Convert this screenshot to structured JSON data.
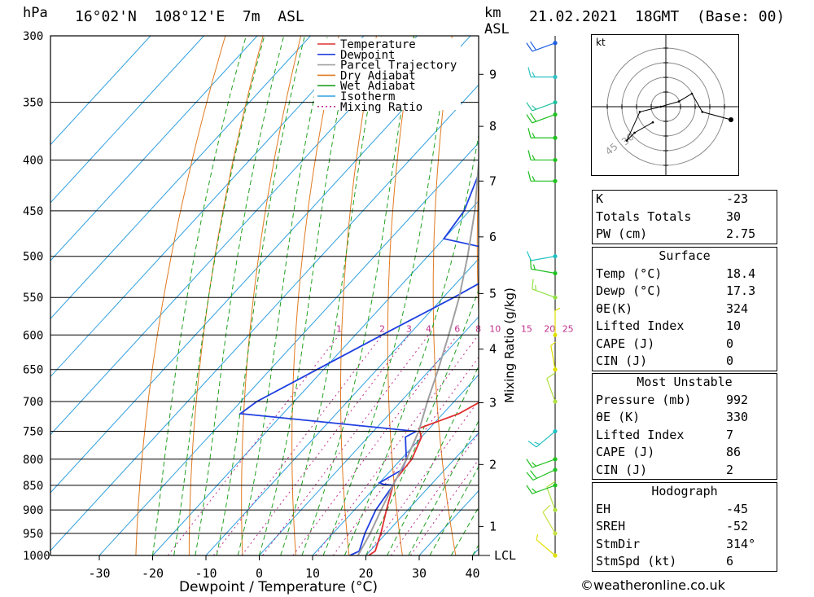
{
  "header": {
    "pressure_unit": "hPa",
    "location": "16°02'N  108°12'E  7m  ASL",
    "height_unit_top": "km",
    "height_unit_bottom": "ASL",
    "datetime": "21.02.2021  18GMT  (Base: 00)"
  },
  "chart_data": {
    "type": "line",
    "title": "",
    "xlabel": "Dewpoint / Temperature (°C)",
    "ylabel": "hPa",
    "right_axis_label": "Mixing Ratio (g/kg)",
    "xlim": [
      -40,
      40
    ],
    "ylim": [
      1000,
      300
    ],
    "x_ticks": [
      -30,
      -20,
      -10,
      0,
      10,
      20,
      30,
      40
    ],
    "pressure_ticks": [
      300,
      350,
      400,
      450,
      500,
      550,
      600,
      650,
      700,
      750,
      800,
      850,
      900,
      950,
      1000
    ],
    "height_ticks_km": [
      {
        "p": 935,
        "label": "1"
      },
      {
        "p": 810,
        "label": "2"
      },
      {
        "p": 702,
        "label": "3"
      },
      {
        "p": 620,
        "label": "4"
      },
      {
        "p": 545,
        "label": "5"
      },
      {
        "p": 478,
        "label": "6"
      },
      {
        "p": 420,
        "label": "7"
      },
      {
        "p": 370,
        "label": "8"
      },
      {
        "p": 328,
        "label": "9"
      }
    ],
    "lcl_label": "LCL",
    "lcl_pressure": 1000,
    "mixing_ratio_labels": [
      "1",
      "2",
      "3",
      "4",
      "6",
      "8",
      "10",
      "15",
      "20",
      "25"
    ],
    "mixing_ratio_values": [
      1,
      2,
      3,
      4,
      6,
      8,
      10,
      15,
      20,
      25
    ],
    "legend": [
      "Temperature",
      "Dewpoint",
      "Parcel Trajectory",
      "Dry Adiabat",
      "Wet Adiabat",
      "Isotherm",
      "Mixing Ratio"
    ],
    "legend_placement": "top-right",
    "colors": {
      "temperature": "#e03030",
      "dewpoint": "#2040e0",
      "parcel": "#a0a0a0",
      "dry_adiabat": "#e07a20",
      "wet_adiabat": "#20a020",
      "isotherm": "#30a0e0",
      "mixing_ratio": "#c0308c"
    },
    "series": [
      {
        "name": "Temperature",
        "points": [
          [
            1000,
            20.5
          ],
          [
            990,
            21
          ],
          [
            950,
            19
          ],
          [
            900,
            16
          ],
          [
            850,
            13
          ],
          [
            840,
            12.5
          ],
          [
            800,
            12
          ],
          [
            760,
            10
          ],
          [
            745,
            8
          ],
          [
            720,
            13
          ],
          [
            700,
            15
          ],
          [
            650,
            10
          ],
          [
            600,
            6
          ],
          [
            550,
            2
          ],
          [
            520,
            -1
          ],
          [
            505,
            -3
          ],
          [
            500,
            -2
          ],
          [
            480,
            -2.5
          ],
          [
            450,
            -6
          ],
          [
            400,
            -13
          ],
          [
            350,
            -23
          ],
          [
            320,
            -29
          ],
          [
            305,
            -31
          ],
          [
            300,
            -32
          ]
        ]
      },
      {
        "name": "Dewpoint",
        "points": [
          [
            1000,
            17
          ],
          [
            990,
            18
          ],
          [
            950,
            16
          ],
          [
            900,
            14
          ],
          [
            850,
            13
          ],
          [
            848,
            11
          ],
          [
            845,
            10
          ],
          [
            820,
            12
          ],
          [
            800,
            11
          ],
          [
            780,
            9
          ],
          [
            760,
            7
          ],
          [
            750,
            8
          ],
          [
            720,
            -28
          ],
          [
            700,
            -27
          ],
          [
            600,
            -15
          ],
          [
            550,
            -8
          ],
          [
            520,
            -4
          ],
          [
            510,
            1
          ],
          [
            500,
            -2
          ],
          [
            480,
            -20
          ],
          [
            450,
            -21
          ],
          [
            400,
            -26
          ],
          [
            355,
            -16
          ],
          [
            320,
            -19
          ],
          [
            310,
            -20
          ],
          [
            300,
            -18
          ]
        ]
      },
      {
        "name": "Parcel Trajectory",
        "points": [
          [
            1000,
            18.5
          ],
          [
            950,
            17
          ],
          [
            900,
            15
          ],
          [
            850,
            13
          ],
          [
            800,
            11
          ],
          [
            750,
            8.5
          ],
          [
            700,
            5
          ],
          [
            650,
            1.5
          ],
          [
            600,
            -2.5
          ],
          [
            550,
            -7
          ],
          [
            500,
            -12.5
          ],
          [
            450,
            -19
          ],
          [
            400,
            -27
          ],
          [
            350,
            -36
          ],
          [
            300,
            -48
          ]
        ]
      }
    ]
  },
  "winds": [
    {
      "p": 1000,
      "dir": 310,
      "kt": 5,
      "color": "#e0e000"
    },
    {
      "p": 950,
      "dir": 330,
      "kt": 8,
      "color": "#c8e040"
    },
    {
      "p": 900,
      "dir": 340,
      "kt": 10,
      "color": "#b0e040"
    },
    {
      "p": 850,
      "dir": 250,
      "kt": 15,
      "color": "#20c020"
    },
    {
      "p": 820,
      "dir": 245,
      "kt": 20,
      "color": "#20c020"
    },
    {
      "p": 800,
      "dir": 250,
      "kt": 15,
      "color": "#20c020"
    },
    {
      "p": 750,
      "dir": 230,
      "kt": 15,
      "color": "#20c0c0"
    },
    {
      "p": 700,
      "dir": 340,
      "kt": 10,
      "color": "#b0e040"
    },
    {
      "p": 650,
      "dir": 350,
      "kt": 5,
      "color": "#e0e000"
    },
    {
      "p": 600,
      "dir": 0,
      "kt": 3,
      "color": "#e0e000"
    },
    {
      "p": 550,
      "dir": 290,
      "kt": 15,
      "color": "#90e040"
    },
    {
      "p": 520,
      "dir": 280,
      "kt": 15,
      "color": "#20c020"
    },
    {
      "p": 500,
      "dir": 260,
      "kt": 10,
      "color": "#20c0c0"
    },
    {
      "p": 420,
      "dir": 270,
      "kt": 15,
      "color": "#20c020"
    },
    {
      "p": 400,
      "dir": 270,
      "kt": 15,
      "color": "#20c020"
    },
    {
      "p": 380,
      "dir": 270,
      "kt": 15,
      "color": "#20c020"
    },
    {
      "p": 360,
      "dir": 250,
      "kt": 20,
      "color": "#20c020"
    },
    {
      "p": 350,
      "dir": 250,
      "kt": 15,
      "color": "#20c0a0"
    },
    {
      "p": 330,
      "dir": 270,
      "kt": 15,
      "color": "#30c0c0"
    },
    {
      "p": 305,
      "dir": 250,
      "kt": 20,
      "color": "#2060e0"
    }
  ],
  "hodograph": {
    "unit_label": "kt",
    "ring_labels": [
      "30",
      "45"
    ],
    "points": [
      [
        -5,
        -6
      ],
      [
        -12,
        -10
      ],
      [
        -15,
        -13
      ],
      [
        -10,
        -2
      ],
      [
        -2,
        0
      ],
      [
        5,
        2
      ],
      [
        10,
        5
      ],
      [
        14,
        -2
      ],
      [
        25,
        -5
      ]
    ]
  },
  "indices_table": [
    {
      "label": "K",
      "value": "-23"
    },
    {
      "label": "Totals Totals",
      "value": "30"
    },
    {
      "label": "PW (cm)",
      "value": "2.75"
    }
  ],
  "surface_table": {
    "title": "Surface",
    "rows": [
      {
        "label": "Temp (°C)",
        "value": "18.4"
      },
      {
        "label": "Dewp (°C)",
        "value": "17.3"
      },
      {
        "label": "θE(K)",
        "value": "324"
      },
      {
        "label": "Lifted Index",
        "value": "10"
      },
      {
        "label": "CAPE (J)",
        "value": "0"
      },
      {
        "label": "CIN (J)",
        "value": "0"
      }
    ]
  },
  "unstable_table": {
    "title": "Most Unstable",
    "rows": [
      {
        "label": "Pressure (mb)",
        "value": "992"
      },
      {
        "label": "θE (K)",
        "value": "330"
      },
      {
        "label": "Lifted Index",
        "value": "7"
      },
      {
        "label": "CAPE (J)",
        "value": "86"
      },
      {
        "label": "CIN (J)",
        "value": "2"
      }
    ]
  },
  "hodograph_table": {
    "title": "Hodograph",
    "rows": [
      {
        "label": "EH",
        "value": "-45"
      },
      {
        "label": "SREH",
        "value": "-52"
      },
      {
        "label": "StmDir",
        "value": "314°"
      },
      {
        "label": "StmSpd (kt)",
        "value": "6"
      }
    ]
  },
  "footer": "©weatheronline.co.uk"
}
